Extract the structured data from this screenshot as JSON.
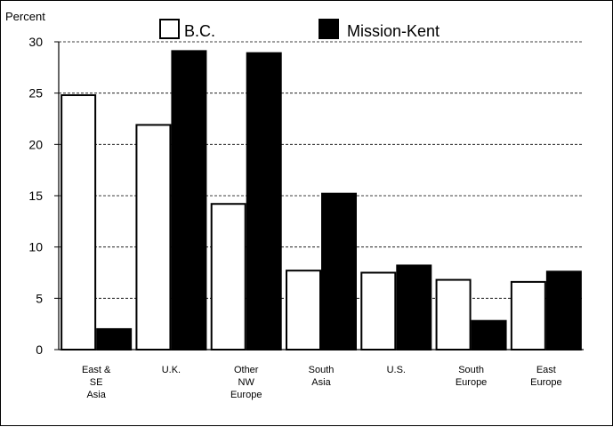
{
  "chart_data": {
    "type": "bar",
    "title": "",
    "xlabel": "",
    "ylabel": "Percent",
    "ylim": [
      0,
      30
    ],
    "yticks": [
      0,
      5,
      10,
      15,
      20,
      25,
      30
    ],
    "grid": true,
    "legend_position": "top",
    "categories": [
      [
        "East &",
        "SE",
        "Asia"
      ],
      [
        "U.K."
      ],
      [
        "Other",
        "NW",
        "Europe"
      ],
      [
        "South",
        "Asia"
      ],
      [
        "U.S."
      ],
      [
        "South",
        "Europe"
      ],
      [
        "East",
        "Europe"
      ]
    ],
    "series": [
      {
        "name": "B.C.",
        "color": "#ffffff",
        "values": [
          24.8,
          21.9,
          14.2,
          7.7,
          7.5,
          6.8,
          6.6
        ]
      },
      {
        "name": "Mission-Kent",
        "color": "#000000",
        "values": [
          2.0,
          29.1,
          28.9,
          15.2,
          8.2,
          2.8,
          7.6
        ]
      }
    ]
  }
}
